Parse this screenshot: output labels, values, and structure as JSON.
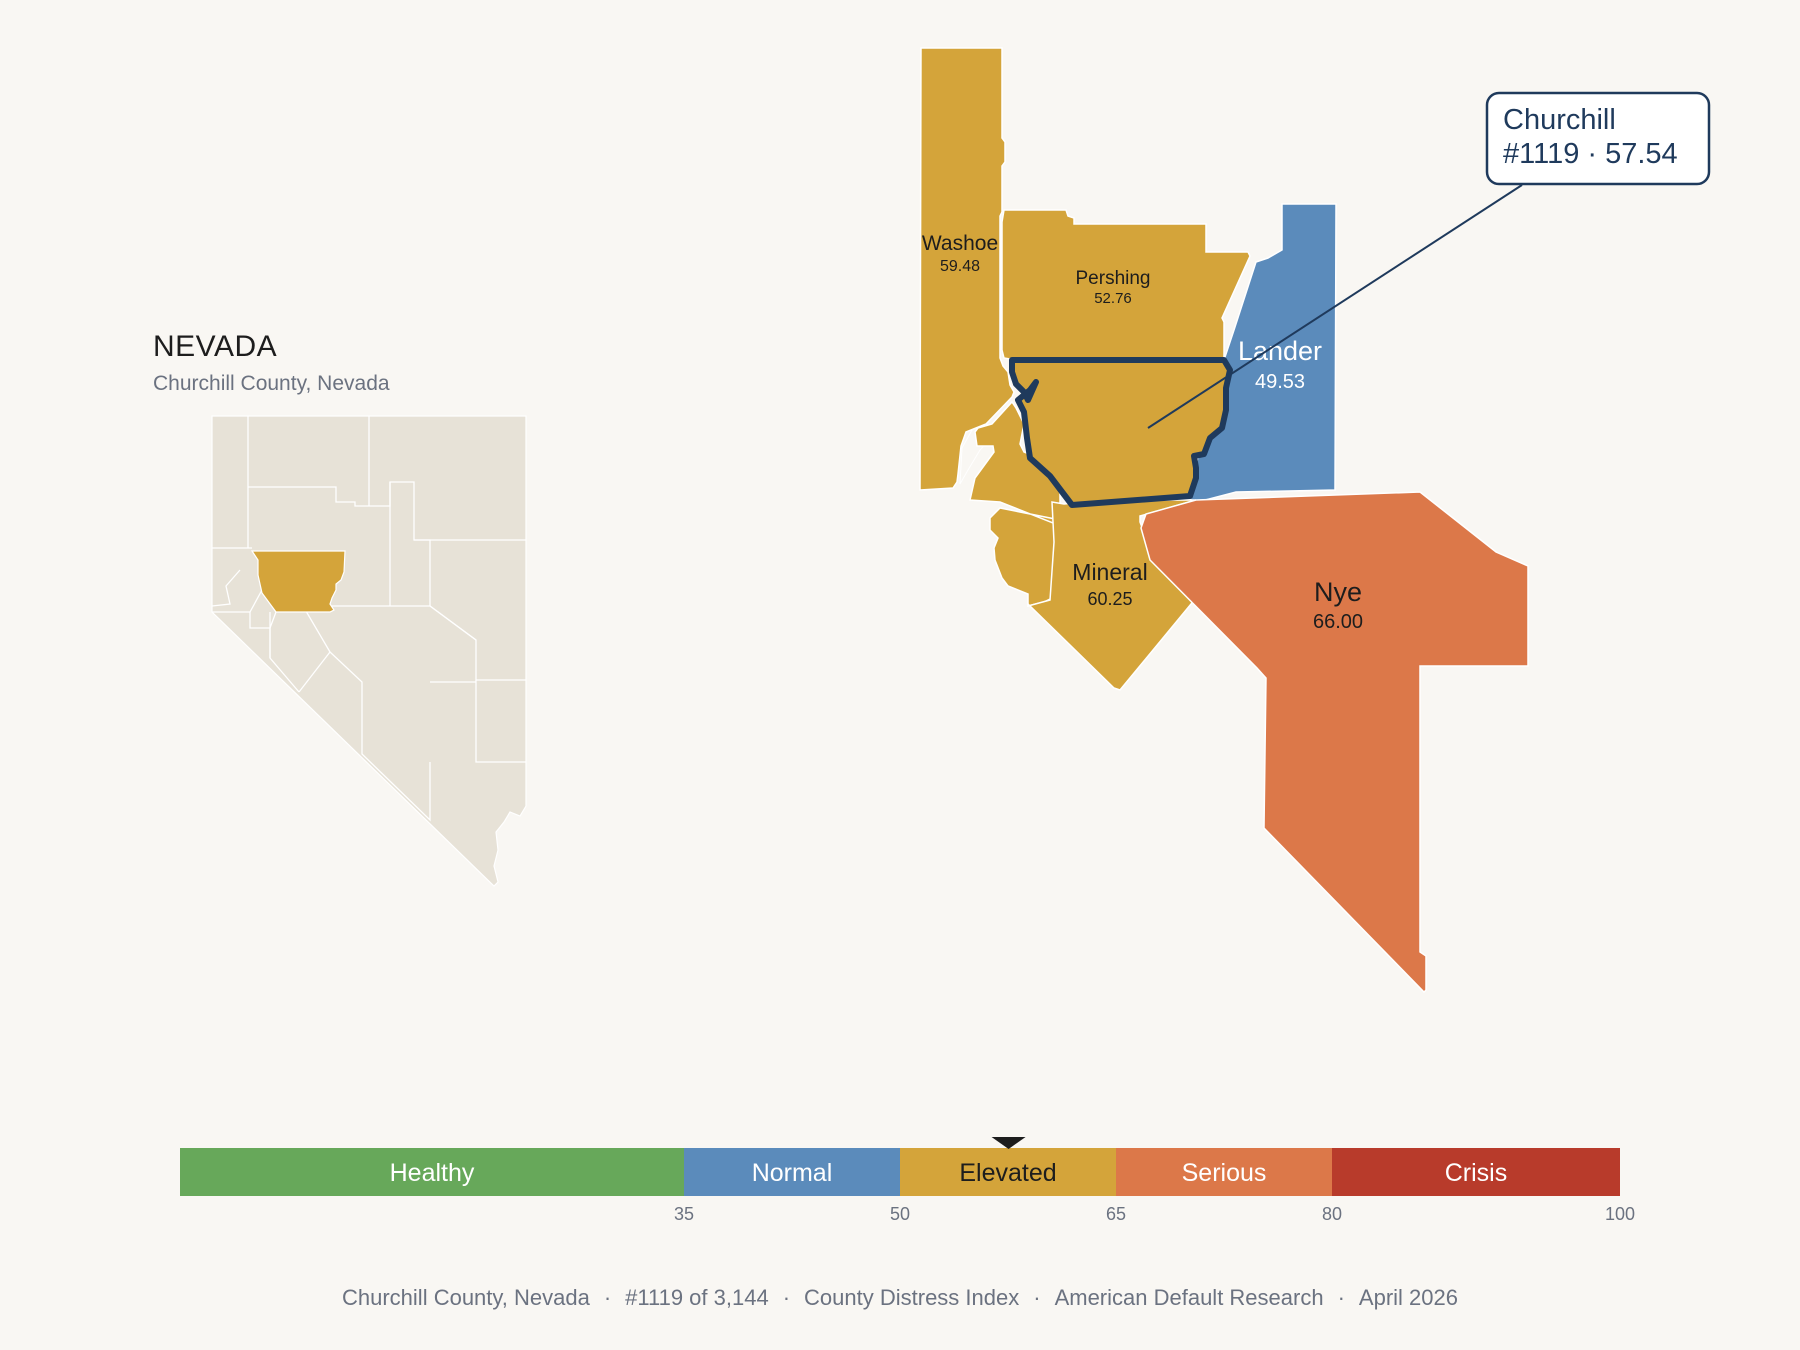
{
  "inset": {
    "title": "NEVADA",
    "subtitle": "Churchill County, Nevada"
  },
  "counties": {
    "washoe": {
      "name": "Washoe",
      "value": "59.48",
      "color": "#d4a43a"
    },
    "pershing": {
      "name": "Pershing",
      "value": "52.76",
      "color": "#d4a43a"
    },
    "lander": {
      "name": "Lander",
      "value": "49.53",
      "color": "#5b8bbb"
    },
    "mineral": {
      "name": "Mineral",
      "value": "60.25",
      "color": "#d4a43a"
    },
    "nye": {
      "name": "Nye",
      "value": "66.00",
      "color": "#dc7849"
    },
    "churchill": {
      "name": "Churchill",
      "value": "57.54",
      "color": "#d4a43a"
    }
  },
  "callout": {
    "line1": "Churchill",
    "line2": "#1119 · 57.54"
  },
  "legend": {
    "bands": [
      {
        "label": "Healthy",
        "from": 0,
        "to": 35,
        "color": "#67a85a"
      },
      {
        "label": "Normal",
        "from": 35,
        "to": 50,
        "color": "#5b8bbb"
      },
      {
        "label": "Elevated",
        "from": 50,
        "to": 65,
        "color": "#d4a43a"
      },
      {
        "label": "Serious",
        "from": 65,
        "to": 80,
        "color": "#dc7849"
      },
      {
        "label": "Crisis",
        "from": 80,
        "to": 100,
        "color": "#b83b2b"
      }
    ],
    "ticks": [
      "35",
      "50",
      "65",
      "80",
      "100"
    ],
    "marker_value": 57.54
  },
  "footer": {
    "county": "Churchill County, Nevada",
    "rank": "#1119 of 3,144",
    "index": "County Distress Index",
    "org": "American Default Research",
    "date": "April 2026"
  }
}
